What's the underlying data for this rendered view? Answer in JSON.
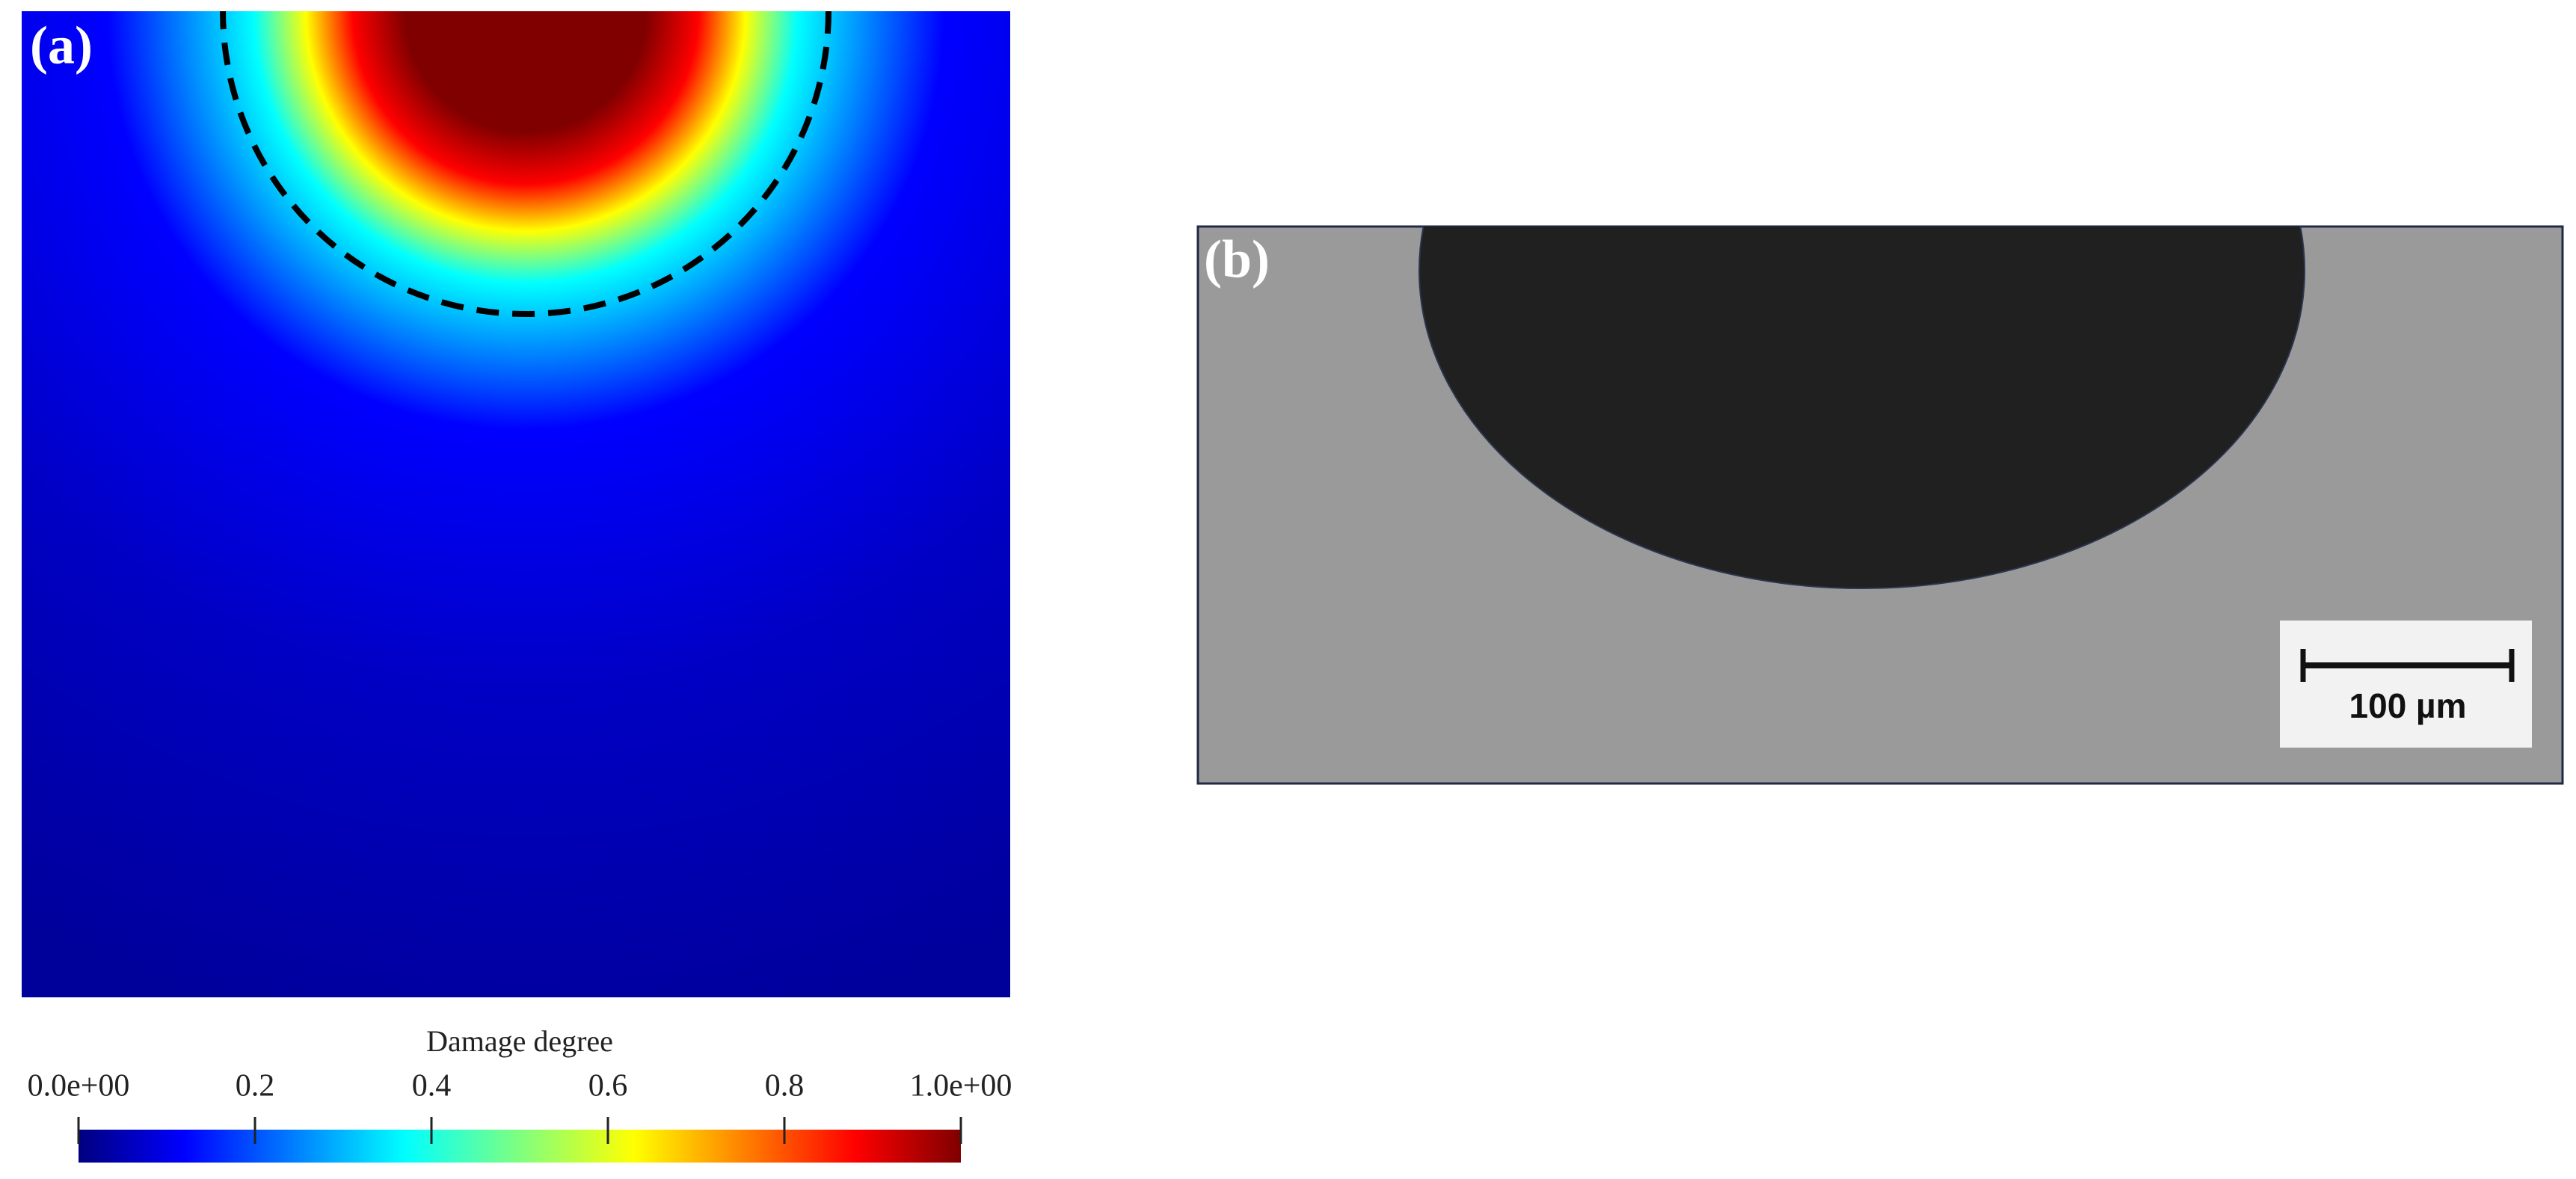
{
  "panel_a": {
    "label": "(a)",
    "colorbar": {
      "title": "Damage degree",
      "lim": [
        0,
        1
      ],
      "ticks": [
        {
          "value": 0,
          "label": "0.0e+00"
        },
        0.2,
        0.4,
        0.6,
        0.8,
        {
          "value": 1,
          "label": "1.0e+00"
        }
      ]
    }
  },
  "panel_b": {
    "label": "(b)",
    "scale_bar": "100 µm"
  }
}
